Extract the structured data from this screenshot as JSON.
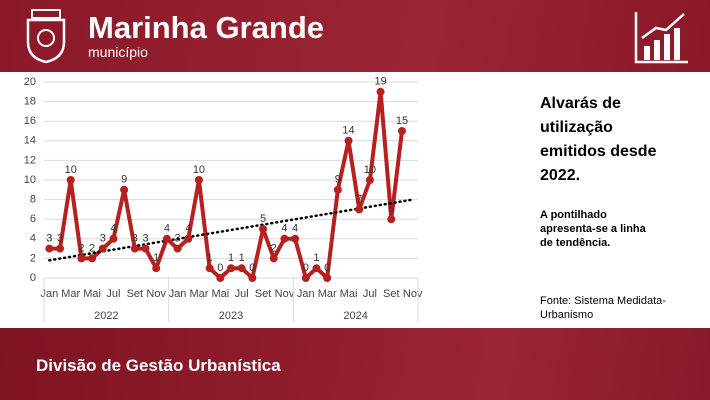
{
  "header": {
    "title": "Marinha Grande",
    "subtitle": "município"
  },
  "footer": {
    "title": "Divisão de Gestão Urbanística"
  },
  "side_panel": {
    "title": "Alvarás de utilização emitidos desde 2022.",
    "note": "A pontilhado apresenta-se a linha de tendência.",
    "source": "Fonte: Sistema Medidata-Urbanismo"
  },
  "chart_data": {
    "type": "line",
    "categories": [
      "Jan",
      null,
      "Mar",
      null,
      "Mai",
      null,
      "Jul",
      null,
      "Set",
      null,
      "Nov",
      null,
      "Jan",
      null,
      "Mar",
      null,
      "Mai",
      null,
      "Jul",
      null,
      "Set",
      null,
      "Nov",
      null,
      "Jan",
      null,
      "Mar",
      null,
      "Mai",
      null,
      "Jul",
      null,
      "Set",
      null,
      "Nov"
    ],
    "year_groups": [
      "2022",
      "2023",
      "2024"
    ],
    "values": [
      3,
      3,
      10,
      2,
      2,
      3,
      4,
      9,
      3,
      3,
      1,
      4,
      3,
      4,
      10,
      1,
      0,
      1,
      1,
      0,
      5,
      2,
      4,
      4,
      0,
      1,
      0,
      9,
      14,
      7,
      10,
      19,
      6,
      15,
      null
    ],
    "color": "#b5211f",
    "trend": [
      1.8,
      8.0
    ],
    "trend_color": "#000000",
    "ylim": [
      0,
      20
    ],
    "yticks": [
      0,
      2,
      4,
      6,
      8,
      10,
      12,
      14,
      16,
      18,
      20
    ],
    "grid": true
  }
}
